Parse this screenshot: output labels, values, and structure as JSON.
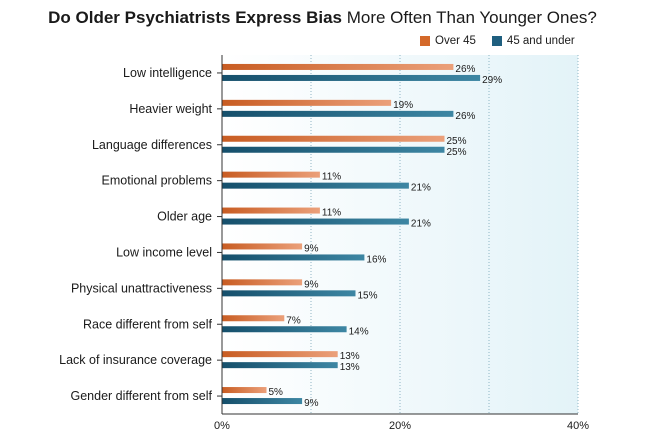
{
  "chart_data": {
    "type": "bar",
    "orientation": "horizontal",
    "title_bold": "Do Older Psychiatrists Express Bias",
    "title_rest": " More Often Than Younger Ones?",
    "categories": [
      "Low intelligence",
      "Heavier weight",
      "Language differences",
      "Emotional problems",
      "Older age",
      "Low income level",
      "Physical unattractiveness",
      "Race different from self",
      "Lack of insurance coverage",
      "Gender different from self"
    ],
    "series": [
      {
        "name": "Over 45",
        "color": "#d4692a",
        "values": [
          26,
          19,
          25,
          11,
          11,
          9,
          9,
          7,
          13,
          5
        ]
      },
      {
        "name": "45 and under",
        "color": "#1f5f7f",
        "values": [
          29,
          26,
          25,
          21,
          21,
          16,
          15,
          14,
          13,
          9
        ]
      }
    ],
    "value_suffix": "%",
    "xlim": [
      0,
      40
    ],
    "x_ticks": [
      {
        "value": 0,
        "label": "0%"
      },
      {
        "value": 20,
        "label": "20%"
      },
      {
        "value": 40,
        "label": "40%"
      }
    ],
    "x_gridlines": [
      10,
      20,
      30,
      40
    ],
    "legend_position": "top-right",
    "grid": true
  }
}
